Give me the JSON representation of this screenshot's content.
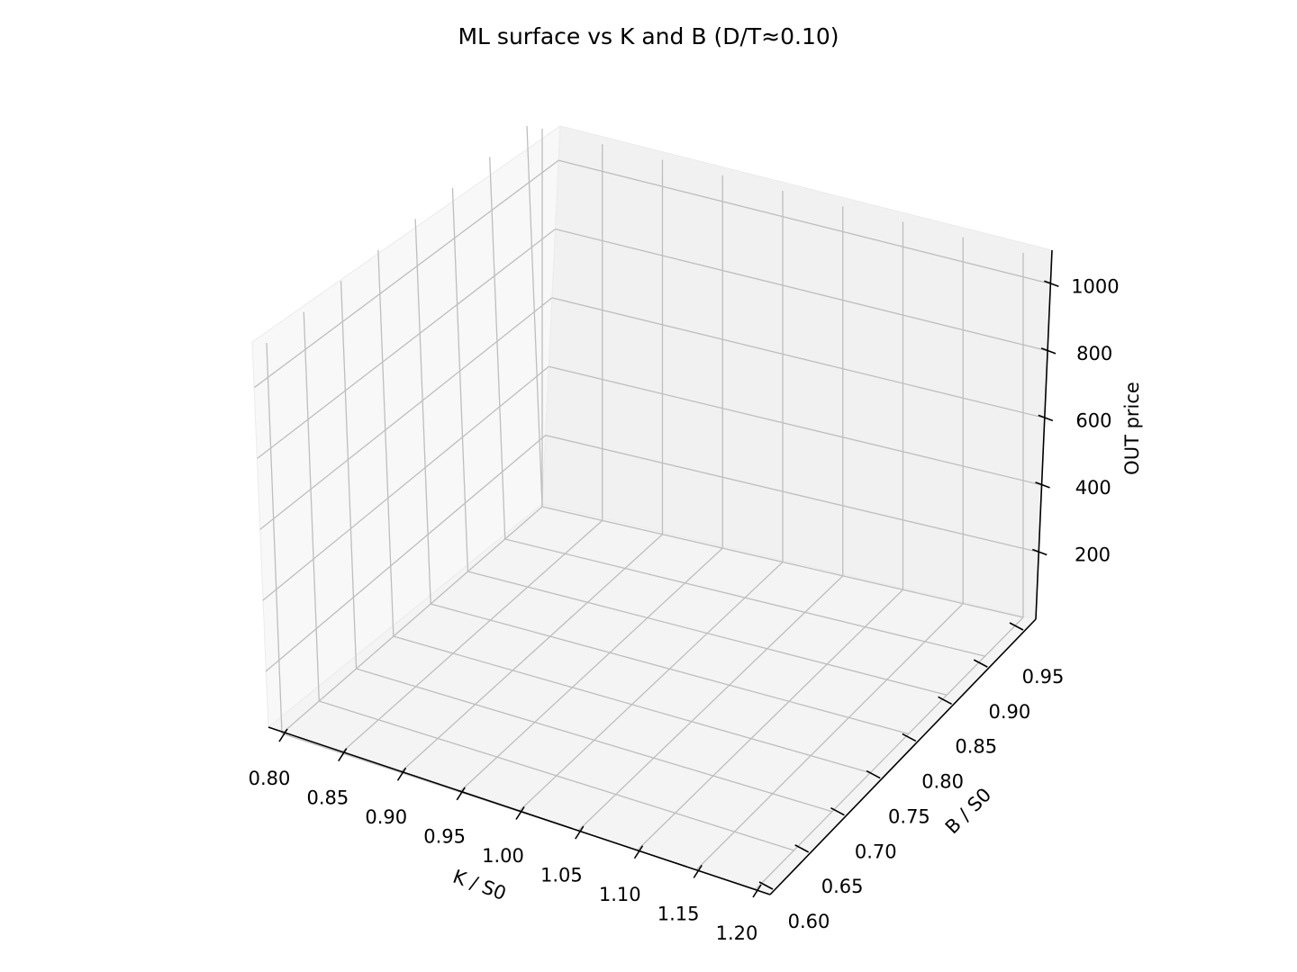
{
  "chart_data": {
    "type": "surface3d",
    "title": "ML surface vs K and B (D/T≈0.10)",
    "xlabel": "K / S0",
    "ylabel": "B / S0",
    "zlabel": "OUT price",
    "x_ticks": [
      "0.80",
      "0.85",
      "0.90",
      "0.95",
      "1.00",
      "1.05",
      "1.10",
      "1.15",
      "1.20"
    ],
    "y_ticks": [
      "0.60",
      "0.65",
      "0.70",
      "0.75",
      "0.80",
      "0.85",
      "0.90",
      "0.95"
    ],
    "z_ticks": [
      "200",
      "400",
      "600",
      "800",
      "1000"
    ],
    "xlim": [
      0.8,
      1.2
    ],
    "ylim": [
      0.6,
      0.95
    ],
    "zlim": [
      0,
      1100
    ],
    "grid": true,
    "series": []
  }
}
